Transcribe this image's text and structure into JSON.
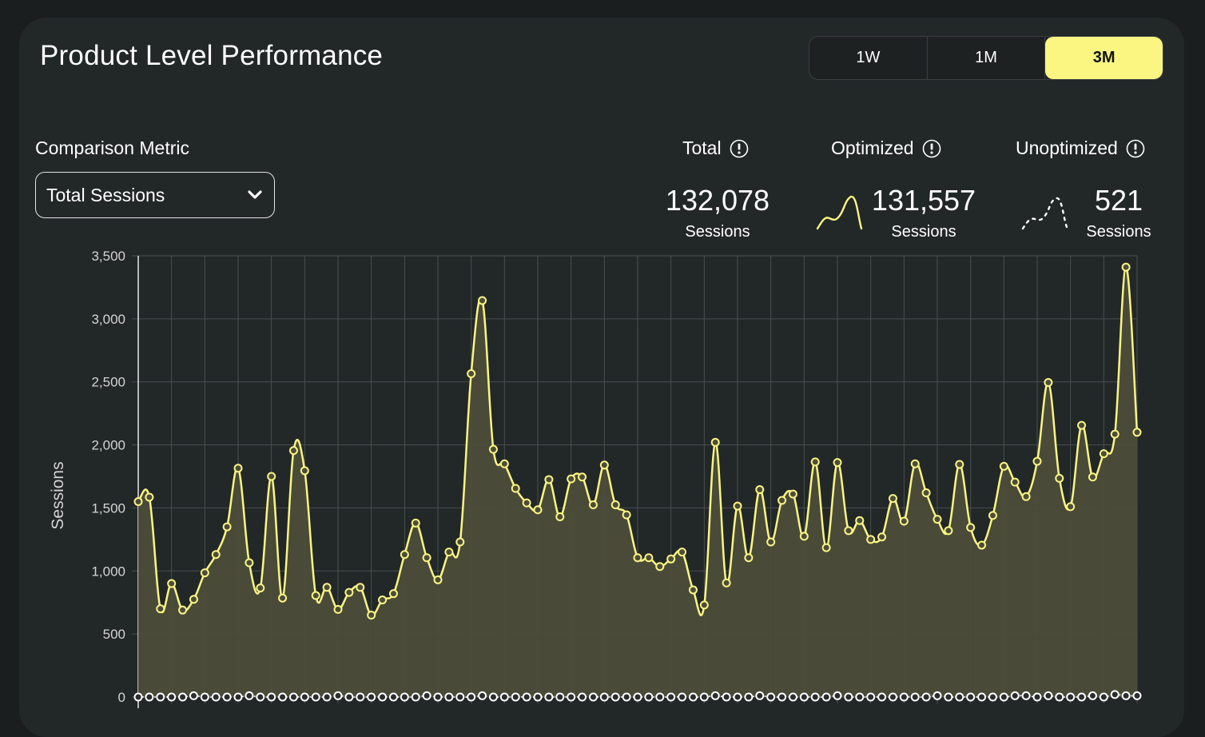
{
  "header": {
    "title": "Product Level Performance",
    "ranges": [
      "1W",
      "1M",
      "3M"
    ],
    "active_range": "3M"
  },
  "metric": {
    "label": "Comparison Metric",
    "selected": "Total Sessions"
  },
  "stats": [
    {
      "label": "Total",
      "value": "132,078",
      "unit": "Sessions",
      "icon": "info-icon"
    },
    {
      "label": "Optimized",
      "value": "131,557",
      "unit": "Sessions",
      "icon": "info-icon",
      "spark": "solid-line-icon"
    },
    {
      "label": "Unoptimized",
      "value": "521",
      "unit": "Sessions",
      "icon": "info-icon",
      "spark": "dotted-line-icon"
    }
  ],
  "colors": {
    "accent": "#fbf582",
    "background": "#1b1e1f",
    "card": "#222728",
    "area_fill": "#4c4d39",
    "grid": "#4a4f50"
  },
  "chart_data": {
    "type": "area",
    "ylabel": "Sessions",
    "ylim": [
      0,
      3500
    ],
    "yticks": [
      "0",
      "500",
      "1,000",
      "1,500",
      "2,000",
      "2,500",
      "3,000",
      "3,500"
    ],
    "grid": true,
    "series": [
      {
        "name": "Optimized",
        "style": "solid",
        "values": [
          1550,
          1585,
          700,
          900,
          690,
          775,
          985,
          1130,
          1350,
          1815,
          1065,
          865,
          1750,
          785,
          1955,
          1795,
          805,
          870,
          695,
          830,
          870,
          650,
          770,
          820,
          1130,
          1380,
          1105,
          930,
          1150,
          1230,
          2565,
          3145,
          1965,
          1850,
          1655,
          1540,
          1485,
          1725,
          1430,
          1730,
          1745,
          1525,
          1840,
          1525,
          1445,
          1105,
          1105,
          1035,
          1095,
          1150,
          850,
          730,
          2020,
          905,
          1515,
          1105,
          1645,
          1230,
          1560,
          1610,
          1275,
          1865,
          1185,
          1860,
          1320,
          1400,
          1250,
          1270,
          1575,
          1395,
          1850,
          1620,
          1410,
          1320,
          1845,
          1345,
          1205,
          1440,
          1830,
          1705,
          1590,
          1870,
          2495,
          1735,
          1510,
          2155,
          1745,
          1930,
          2085,
          3410,
          2100
        ]
      },
      {
        "name": "Unoptimized",
        "style": "dotted",
        "values": [
          0,
          0,
          0,
          0,
          0,
          10,
          0,
          0,
          0,
          0,
          10,
          0,
          0,
          0,
          0,
          0,
          0,
          0,
          10,
          0,
          0,
          0,
          0,
          0,
          0,
          0,
          10,
          0,
          0,
          0,
          0,
          10,
          0,
          0,
          0,
          0,
          0,
          0,
          0,
          0,
          0,
          0,
          0,
          0,
          0,
          0,
          0,
          0,
          0,
          0,
          0,
          0,
          10,
          0,
          0,
          0,
          10,
          0,
          0,
          0,
          0,
          0,
          0,
          10,
          0,
          0,
          0,
          0,
          0,
          0,
          0,
          0,
          10,
          0,
          0,
          0,
          0,
          0,
          0,
          10,
          10,
          0,
          10,
          0,
          0,
          0,
          10,
          0,
          20,
          10,
          10
        ]
      }
    ]
  }
}
